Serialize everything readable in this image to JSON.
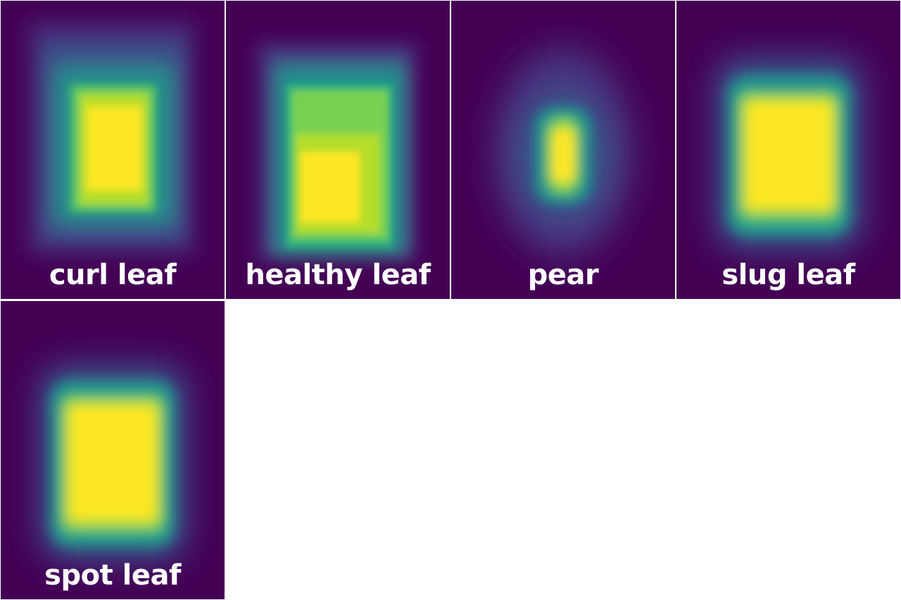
{
  "heatmaps": [
    {
      "label": "curl leaf",
      "colors": {
        "outer": "#433e85",
        "mid": "#21918c",
        "inner": "#fde725"
      },
      "grid": [
        "row",
        "0"
      ]
    },
    {
      "label": "healthy leaf",
      "colors": {
        "outer": "#3b528b",
        "mid": "#5ec962",
        "inner": "#fde725"
      },
      "grid": [
        "row",
        "1"
      ]
    },
    {
      "label": "pear",
      "colors": {
        "outer": "#46327e",
        "mid": "#21918c",
        "inner": "#fde725"
      },
      "grid": [
        "row",
        "2"
      ]
    },
    {
      "label": "slug leaf",
      "colors": {
        "outer": "#3b528b",
        "mid": "#35b779",
        "inner": "#fde725"
      },
      "grid": [
        "row",
        "3"
      ]
    },
    {
      "label": "spot leaf",
      "colors": {
        "outer": "#3b528b",
        "mid": "#35b779",
        "inner": "#fde725"
      },
      "grid": [
        "row",
        "4"
      ]
    }
  ],
  "colormap": {
    "background": "#440154",
    "separator": "#ffffff"
  }
}
